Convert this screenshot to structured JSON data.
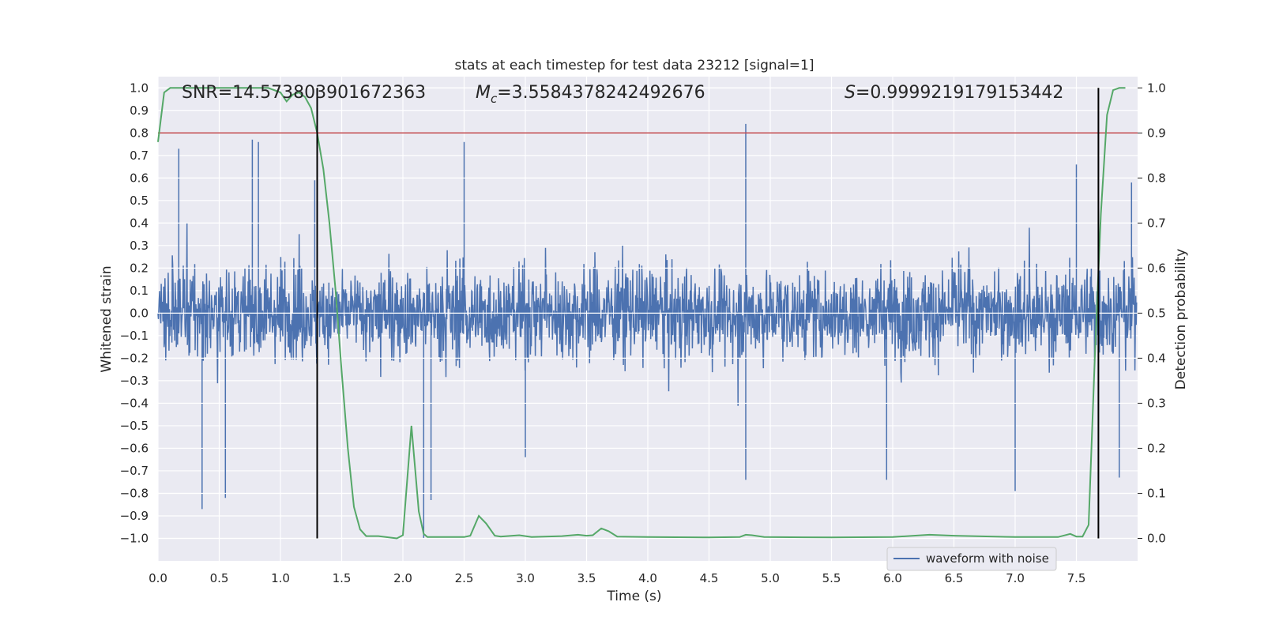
{
  "chart_data": {
    "type": "line",
    "title": "stats at each timestep for test data 23212 [signal=1]",
    "xlabel": "Time (s)",
    "ylabel_left": "Whitened strain",
    "ylabel_right": "Detection probability",
    "xlim": [
      0.0,
      8.0
    ],
    "ylim_left": [
      -1.1,
      1.05
    ],
    "ylim_right": [
      -0.05,
      1.025
    ],
    "xticks": [
      "0.0",
      "0.5",
      "1.0",
      "1.5",
      "2.0",
      "2.5",
      "3.0",
      "3.5",
      "4.0",
      "4.5",
      "5.0",
      "5.5",
      "6.0",
      "6.5",
      "7.0",
      "7.5"
    ],
    "yticks_left": [
      "1.0",
      "0.9",
      "0.8",
      "0.7",
      "0.6",
      "0.5",
      "0.4",
      "0.3",
      "0.2",
      "0.1",
      "0.0",
      "-0.1",
      "-0.2",
      "-0.3",
      "-0.4",
      "-0.5",
      "-0.6",
      "-0.7",
      "-0.8",
      "-0.9",
      "-1.0"
    ],
    "yticks_right": [
      "1.0",
      "0.9",
      "0.8",
      "0.7",
      "0.6",
      "0.5",
      "0.4",
      "0.3",
      "0.2",
      "0.1",
      "0.0"
    ],
    "annotations": {
      "snr": "SNR=14.573803901672363",
      "mc_symbol": "M",
      "mc_sub": "c",
      "mc_value": "=3.5584378242492676",
      "s_symbol": "S",
      "s_value": "=0.9999219179153442"
    },
    "threshold": 0.9,
    "vlines_x": [
      1.3,
      7.68
    ],
    "series": [
      {
        "name": "waveform with noise",
        "axis": "left",
        "color": "#4c72b0",
        "description": "dense whitened strain noise",
        "envelope_typical": 0.35,
        "spikes": [
          {
            "x": 0.17,
            "y": 0.73
          },
          {
            "x": 0.36,
            "y": -0.87
          },
          {
            "x": 0.55,
            "y": -0.82
          },
          {
            "x": 0.77,
            "y": 0.77
          },
          {
            "x": 0.82,
            "y": 0.76
          },
          {
            "x": 1.28,
            "y": 0.59
          },
          {
            "x": 2.17,
            "y": -1.0
          },
          {
            "x": 2.23,
            "y": -0.83
          },
          {
            "x": 2.5,
            "y": 0.76
          },
          {
            "x": 3.0,
            "y": -0.64
          },
          {
            "x": 4.8,
            "y": 0.84
          },
          {
            "x": 4.8,
            "y": -0.74
          },
          {
            "x": 5.95,
            "y": -0.74
          },
          {
            "x": 7.0,
            "y": -0.79
          },
          {
            "x": 7.5,
            "y": 0.66
          },
          {
            "x": 7.85,
            "y": -0.73
          },
          {
            "x": 7.95,
            "y": 0.58
          }
        ]
      },
      {
        "name": "detection probability",
        "axis": "right",
        "color": "#55a868",
        "x": [
          0.0,
          0.05,
          0.1,
          0.5,
          0.9,
          1.0,
          1.05,
          1.1,
          1.15,
          1.2,
          1.25,
          1.3,
          1.35,
          1.4,
          1.45,
          1.5,
          1.55,
          1.6,
          1.65,
          1.7,
          1.8,
          1.95,
          2.0,
          2.07,
          2.13,
          2.17,
          2.2,
          2.3,
          2.5,
          2.55,
          2.62,
          2.68,
          2.75,
          2.8,
          2.95,
          3.05,
          3.3,
          3.43,
          3.5,
          3.55,
          3.62,
          3.68,
          3.75,
          4.0,
          4.5,
          4.75,
          4.8,
          4.85,
          4.95,
          5.5,
          6.0,
          6.3,
          6.5,
          7.0,
          7.35,
          7.45,
          7.5,
          7.55,
          7.6,
          7.65,
          7.7,
          7.75,
          7.8,
          7.85,
          7.9
        ],
        "values": [
          0.88,
          0.99,
          1.0,
          1.0,
          1.0,
          0.99,
          0.97,
          0.985,
          0.99,
          0.98,
          0.955,
          0.9,
          0.82,
          0.7,
          0.55,
          0.37,
          0.2,
          0.07,
          0.02,
          0.005,
          0.005,
          0.0,
          0.007,
          0.25,
          0.06,
          0.01,
          0.003,
          0.003,
          0.003,
          0.006,
          0.05,
          0.033,
          0.006,
          0.004,
          0.007,
          0.003,
          0.005,
          0.008,
          0.006,
          0.007,
          0.022,
          0.016,
          0.004,
          0.003,
          0.002,
          0.003,
          0.008,
          0.007,
          0.003,
          0.002,
          0.003,
          0.008,
          0.006,
          0.003,
          0.003,
          0.01,
          0.004,
          0.004,
          0.03,
          0.4,
          0.72,
          0.94,
          0.995,
          1.0,
          1.0
        ]
      }
    ],
    "legend": {
      "label": "waveform with noise",
      "position": "lower-right"
    },
    "colors": {
      "background": "#eaeaf2",
      "grid": "#ffffff",
      "strain": "#4c72b0",
      "probability": "#55a868",
      "threshold": "#c44e52",
      "vline": "#000000"
    }
  }
}
